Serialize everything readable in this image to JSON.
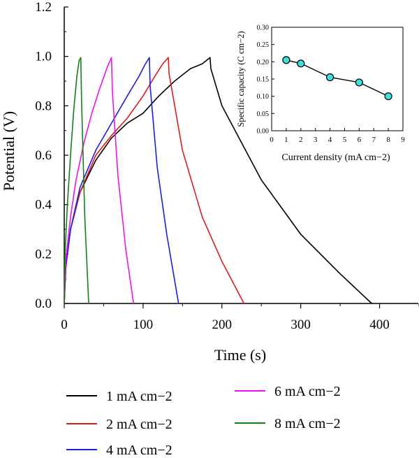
{
  "chart_data": [
    {
      "type": "line",
      "title": "",
      "xlabel": "Time (s)",
      "ylabel": "Potential (V)",
      "xlim": [
        0,
        450
      ],
      "ylim": [
        0,
        1.2
      ],
      "x_ticks": [
        "0",
        "100",
        "200",
        "300",
        "400"
      ],
      "y_ticks": [
        "0.0",
        "0.2",
        "0.4",
        "0.6",
        "0.8",
        "1.0",
        "1.2"
      ],
      "grid": false,
      "legend_position": "bottom",
      "series": [
        {
          "name": "1 mA cm−2",
          "color": "#000000",
          "x": [
            0,
            2,
            8,
            20,
            40,
            60,
            80,
            100,
            120,
            140,
            160,
            175,
            185,
            186,
            200,
            250,
            300,
            350,
            390
          ],
          "y": [
            0.0,
            0.15,
            0.3,
            0.45,
            0.58,
            0.67,
            0.73,
            0.77,
            0.84,
            0.9,
            0.95,
            0.97,
            0.995,
            0.95,
            0.8,
            0.5,
            0.28,
            0.12,
            0.0
          ]
        },
        {
          "name": "2 mA cm−2",
          "color": "#e0191b",
          "x": [
            0,
            2,
            8,
            20,
            40,
            60,
            80,
            100,
            115,
            125,
            132,
            133,
            150,
            175,
            200,
            228
          ],
          "y": [
            0.0,
            0.15,
            0.3,
            0.45,
            0.6,
            0.68,
            0.75,
            0.84,
            0.92,
            0.97,
            0.995,
            0.93,
            0.62,
            0.35,
            0.17,
            0.0
          ]
        },
        {
          "name": "4 mA cm−2",
          "color": "#1d1de0",
          "x": [
            0,
            2,
            8,
            20,
            40,
            60,
            80,
            95,
            103,
            108,
            109,
            118,
            130,
            145
          ],
          "y": [
            0.0,
            0.15,
            0.3,
            0.47,
            0.62,
            0.73,
            0.84,
            0.92,
            0.97,
            0.995,
            0.88,
            0.55,
            0.28,
            0.0
          ]
        },
        {
          "name": "6 mA cm−2",
          "color": "#ee10ee",
          "x": [
            0,
            2,
            8,
            15,
            25,
            35,
            45,
            55,
            60,
            61,
            68,
            78,
            88
          ],
          "y": [
            0.0,
            0.18,
            0.35,
            0.5,
            0.65,
            0.77,
            0.87,
            0.96,
            0.995,
            0.86,
            0.52,
            0.22,
            0.0
          ]
        },
        {
          "name": "8 mA cm−2",
          "color": "#148014",
          "x": [
            0,
            1,
            4,
            8,
            12,
            16,
            19,
            21,
            22,
            26,
            31
          ],
          "y": [
            0.0,
            0.2,
            0.4,
            0.6,
            0.78,
            0.92,
            0.985,
            0.995,
            0.82,
            0.35,
            0.0
          ]
        }
      ]
    },
    {
      "type": "scatter",
      "title": "",
      "xlabel": "Current density (mA cm−2)",
      "ylabel": "Specific capacity (C cm−2)",
      "xlim": [
        0,
        9
      ],
      "ylim": [
        0,
        0.3
      ],
      "x_ticks": [
        "0",
        "1",
        "2",
        "3",
        "4",
        "5",
        "6",
        "7",
        "8",
        "9"
      ],
      "y_ticks": [
        "0.00",
        "0.05",
        "0.10",
        "0.15",
        "0.20",
        "0.25",
        "0.30"
      ],
      "grid": false,
      "marker_color": "#40dede",
      "x": [
        1,
        2,
        4,
        6,
        8
      ],
      "y": [
        0.205,
        0.195,
        0.155,
        0.14,
        0.1
      ]
    }
  ]
}
